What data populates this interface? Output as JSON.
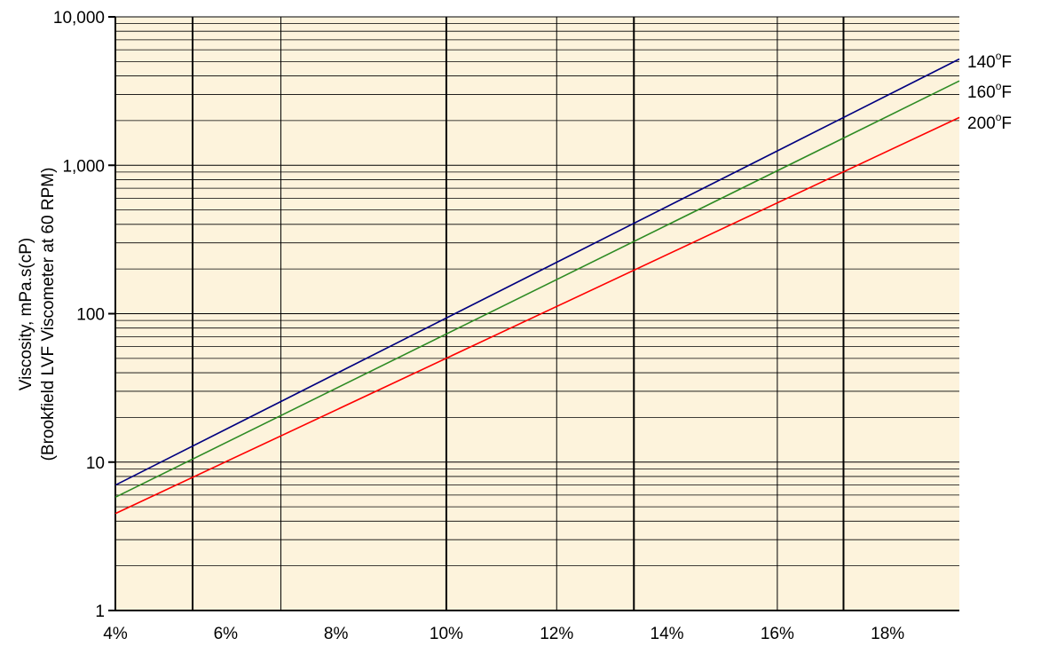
{
  "chart_data": {
    "type": "line",
    "title": "",
    "xlabel": "",
    "ylabel": "Viscosity, mPa.s(cP)",
    "ylabel2": "(Brookfield LVF Viscometer at 60 RPM)",
    "yscale": "log",
    "xlim": [
      4,
      19.3
    ],
    "ylim": [
      1,
      10000
    ],
    "x_ticks": [
      4,
      6,
      8,
      10,
      12,
      14,
      16,
      18
    ],
    "x_tick_labels": [
      "4%",
      "6%",
      "8%",
      "10%",
      "12%",
      "14%",
      "16%",
      "18%"
    ],
    "y_ticks": [
      1,
      10,
      100,
      1000,
      10000
    ],
    "y_tick_labels": [
      "1",
      "10",
      "100",
      "1,000",
      "10,000"
    ],
    "grid": true,
    "background": "#fdf3dc",
    "legend_placement": "right",
    "series": [
      {
        "name": "140°F",
        "label_main": "140",
        "label_sup": "o",
        "label_unit": "F",
        "color": "#00007f",
        "x": [
          4,
          19.3
        ],
        "y": [
          7,
          5200
        ]
      },
      {
        "name": "160°F",
        "label_main": "160",
        "label_sup": "o",
        "label_unit": "F",
        "color": "#2e8b24",
        "x": [
          4,
          19.3
        ],
        "y": [
          5.8,
          3700
        ]
      },
      {
        "name": "200°F",
        "label_main": "200",
        "label_sup": "o",
        "label_unit": "F",
        "color": "#ff0000",
        "x": [
          4,
          19.3
        ],
        "y": [
          4.5,
          2100
        ]
      }
    ]
  }
}
